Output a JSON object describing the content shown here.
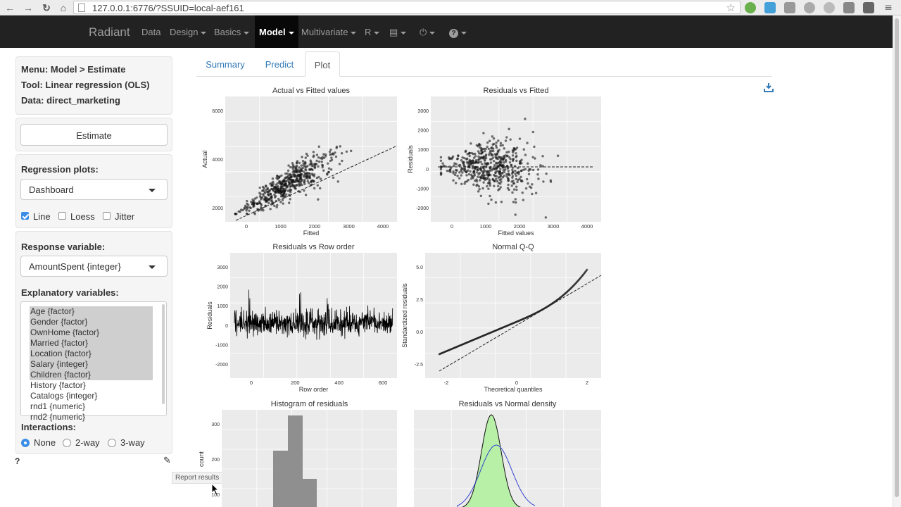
{
  "browser": {
    "url": "127.0.0.1:6776/?SSUID=local-aef161",
    "extensions": [
      "evernote",
      "pushbullet",
      "puzzle",
      "abp",
      "bird",
      "drive",
      "ghostery"
    ]
  },
  "navbar": {
    "brand": "Radiant",
    "items": [
      "Data",
      "Design",
      "Basics",
      "Model",
      "Multivariate",
      "R"
    ],
    "active": "Model"
  },
  "sidebar": {
    "menu_line": "Menu: Model > Estimate",
    "tool_line": "Tool: Linear regression (OLS)",
    "data_line": "Data: direct_marketing",
    "estimate_button": "Estimate",
    "regression_plots_label": "Regression plots:",
    "regression_plots_value": "Dashboard",
    "checkboxes": [
      {
        "label": "Line",
        "checked": true
      },
      {
        "label": "Loess",
        "checked": false
      },
      {
        "label": "Jitter",
        "checked": false
      }
    ],
    "response_label": "Response variable:",
    "response_value": "AmountSpent {integer}",
    "explanatory_label": "Explanatory variables:",
    "explanatory_options": [
      {
        "label": "Age {factor}",
        "selected": true
      },
      {
        "label": "Gender {factor}",
        "selected": true
      },
      {
        "label": "OwnHome {factor}",
        "selected": true
      },
      {
        "label": "Married {factor}",
        "selected": true
      },
      {
        "label": "Location {factor}",
        "selected": true
      },
      {
        "label": "Salary {integer}",
        "selected": true
      },
      {
        "label": "Children {factor}",
        "selected": true
      },
      {
        "label": "History {factor}",
        "selected": false
      },
      {
        "label": "Catalogs {integer}",
        "selected": false
      },
      {
        "label": "rnd1 {numeric}",
        "selected": false
      },
      {
        "label": "rnd2 {numeric}",
        "selected": false
      }
    ],
    "interactions_label": "Interactions:",
    "interactions": [
      {
        "label": "None",
        "checked": true
      },
      {
        "label": "2-way",
        "checked": false
      },
      {
        "label": "3-way",
        "checked": false
      }
    ],
    "help": "?",
    "report_tooltip": "Report results"
  },
  "tabs": [
    {
      "label": "Summary",
      "active": false
    },
    {
      "label": "Predict",
      "active": false
    },
    {
      "label": "Plot",
      "active": true
    }
  ],
  "plots": [
    {
      "title": "Actual vs Fitted values",
      "xlabel": "Fitted",
      "ylabel": "Actual",
      "xticks": [
        "0",
        "1000",
        "2000",
        "3000",
        "4000"
      ],
      "yticks": [
        "2000",
        "4000",
        "6000"
      ]
    },
    {
      "title": "Residuals vs Fitted",
      "xlabel": "Fitted values",
      "ylabel": "Residuals",
      "xticks": [
        "0",
        "1000",
        "2000",
        "3000",
        "4000"
      ],
      "yticks": [
        "-2000",
        "-1000",
        "0",
        "1000",
        "2000",
        "3000"
      ]
    },
    {
      "title": "Residuals vs Row order",
      "xlabel": "Row order",
      "ylabel": "Residuals",
      "xticks": [
        "0",
        "200",
        "400",
        "600"
      ],
      "yticks": [
        "-2000",
        "-1000",
        "0",
        "1000",
        "2000",
        "3000"
      ]
    },
    {
      "title": "Normal Q-Q",
      "xlabel": "Theoretical quantiles",
      "ylabel": "Standardized residuals",
      "xticks": [
        "-2",
        "0",
        "2"
      ],
      "yticks": [
        "-2.5",
        "0.0",
        "2.5",
        "5.0"
      ]
    },
    {
      "title": "Histogram of residuals",
      "xlabel": "",
      "ylabel": "count",
      "xticks": [],
      "yticks": [
        "100",
        "200",
        "300"
      ]
    },
    {
      "title": "Residuals vs Normal density",
      "xlabel": "",
      "ylabel": "",
      "xticks": [],
      "yticks": []
    }
  ],
  "colors": {
    "navbar": "#222222",
    "link": "#337ab7",
    "density_fill": "#b8f0a8",
    "normal_curve": "#3344cc",
    "panel": "#ebebeb"
  }
}
